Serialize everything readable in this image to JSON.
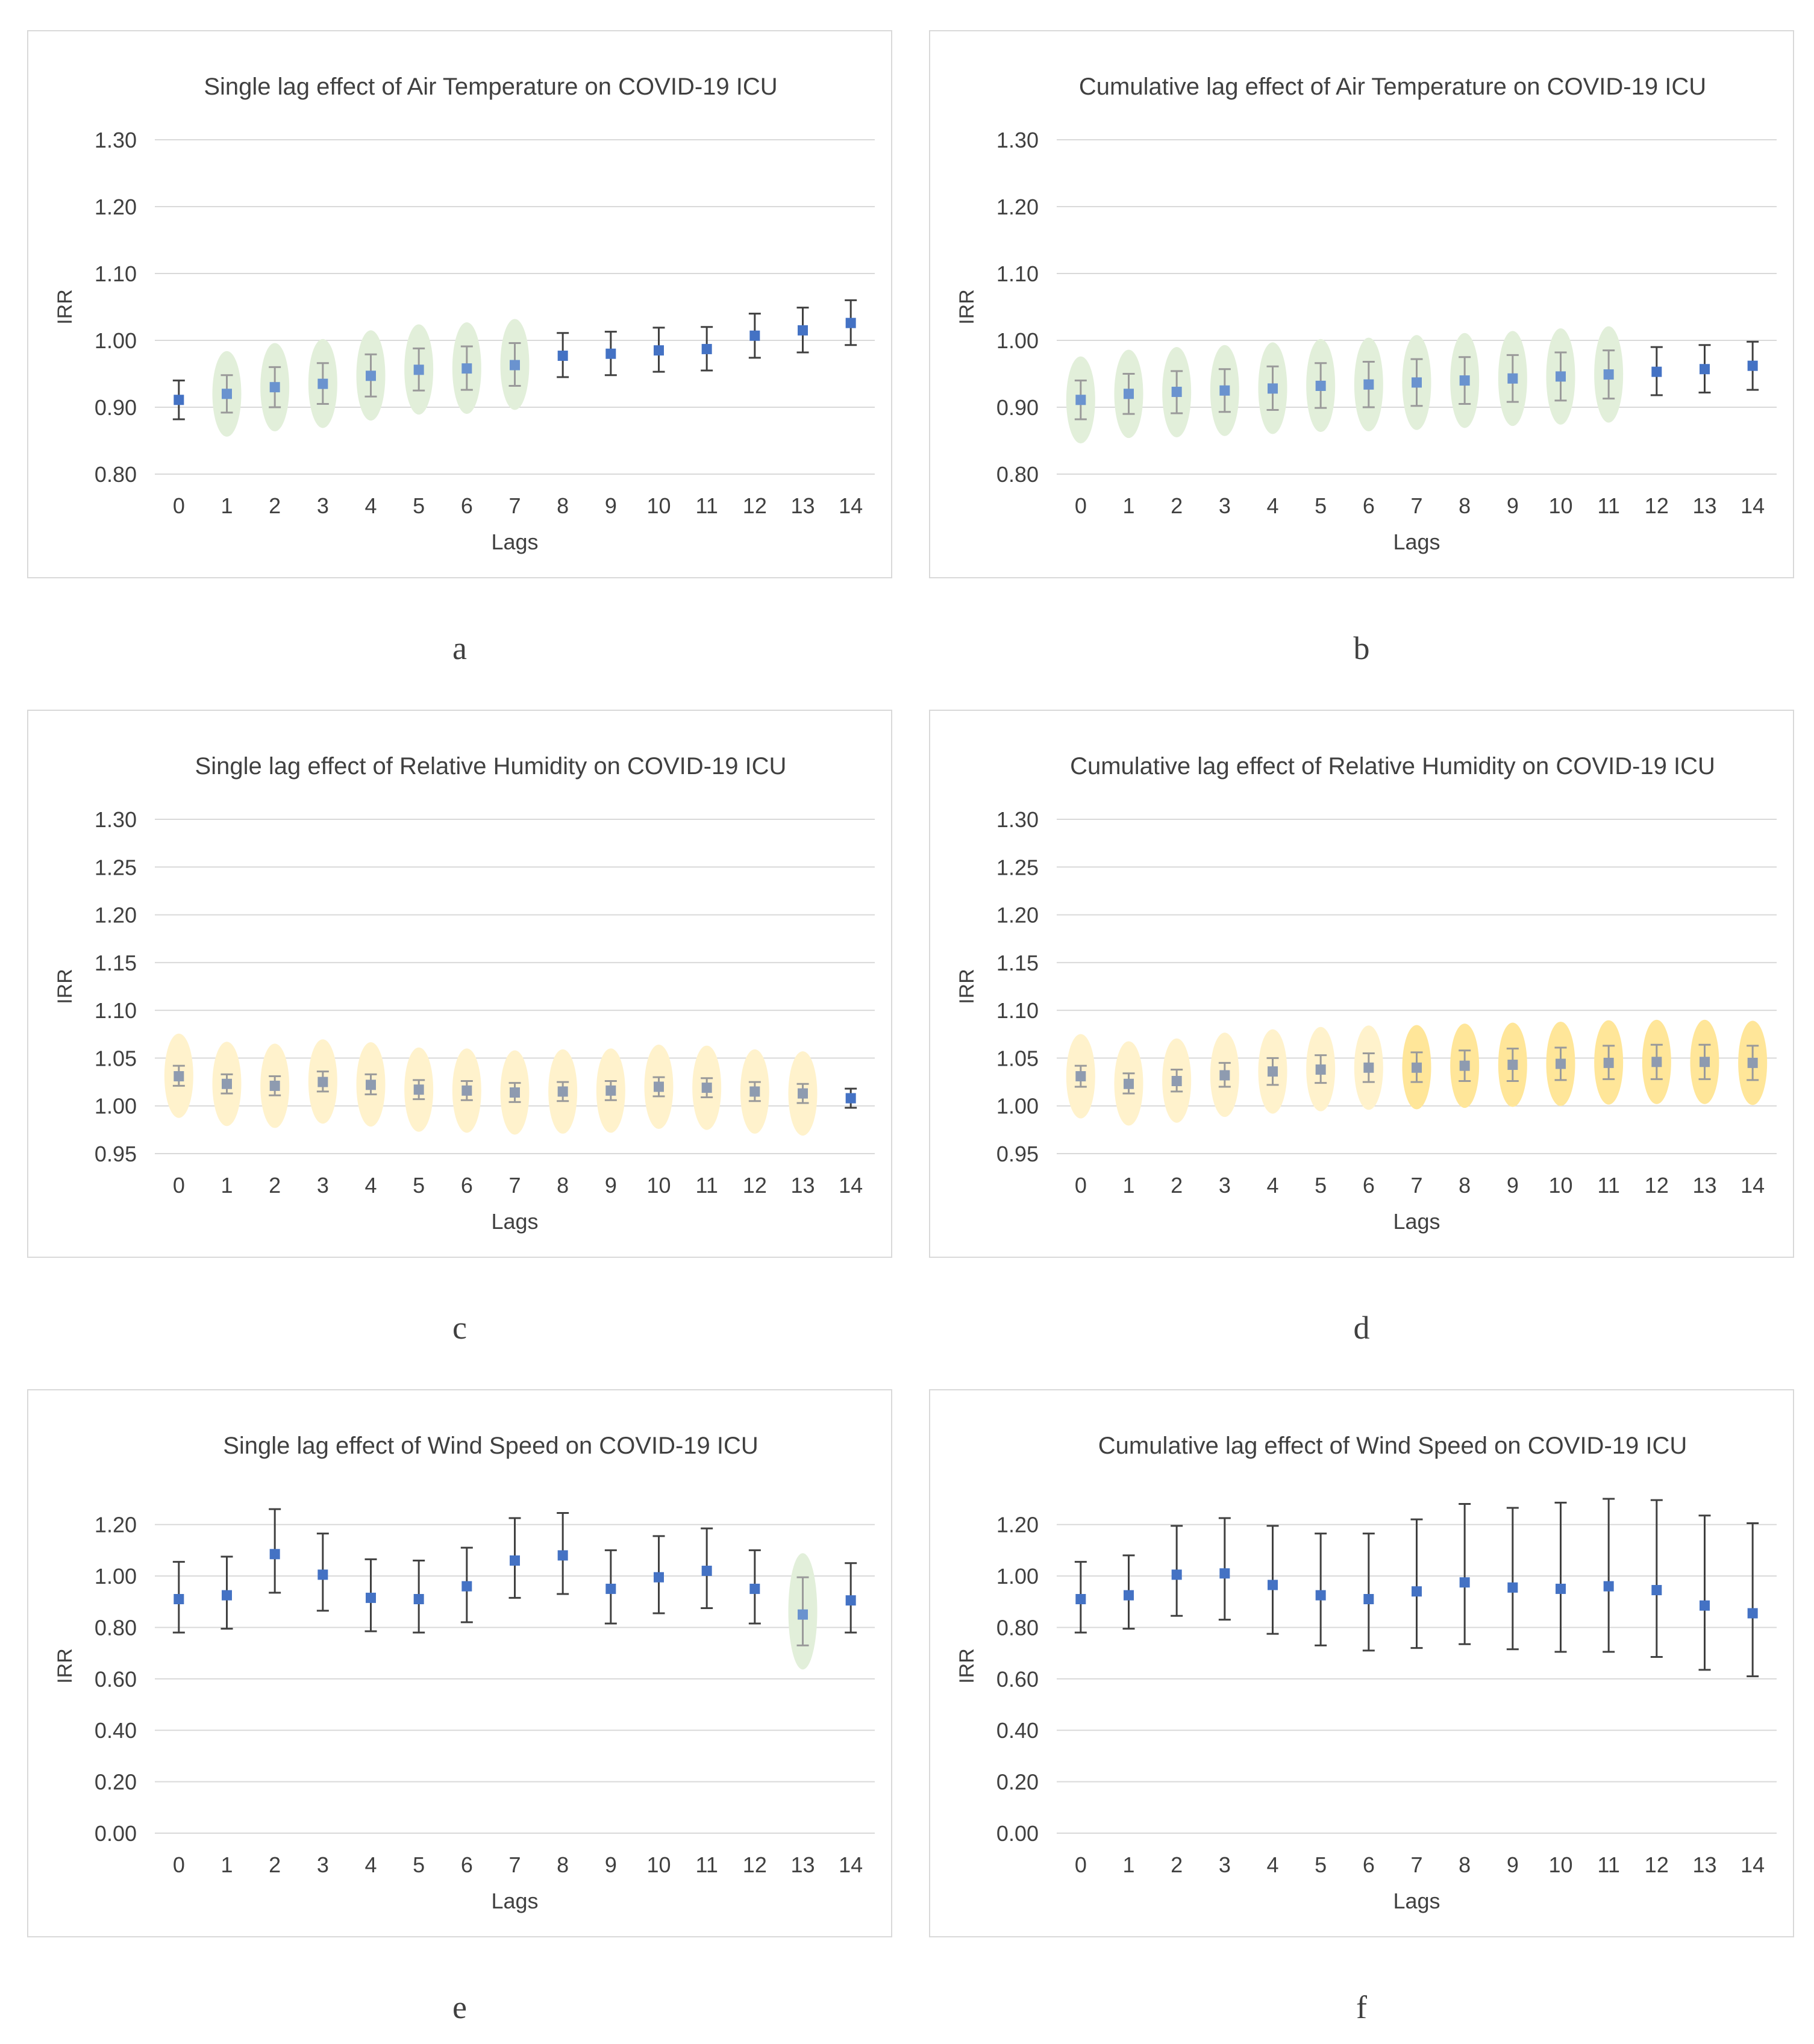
{
  "chart_data": [
    {
      "id": "a",
      "type": "scatter",
      "panel_label": "a",
      "title": "Single lag effect of Air Temperature on COVID-19 ICU",
      "xlabel": "Lags",
      "ylabel": "IRR",
      "ylim": [
        0.8,
        1.3
      ],
      "yticks": [
        "0.80",
        "0.90",
        "1.00",
        "1.10",
        "1.20",
        "1.30"
      ],
      "tick_values": [
        0.8,
        0.9,
        1.0,
        1.1,
        1.2,
        1.3
      ],
      "categories": [
        "0",
        "1",
        "2",
        "3",
        "4",
        "5",
        "6",
        "7",
        "8",
        "9",
        "10",
        "11",
        "12",
        "13",
        "14"
      ],
      "values": [
        0.911,
        0.92,
        0.93,
        0.935,
        0.947,
        0.956,
        0.958,
        0.963,
        0.977,
        0.98,
        0.985,
        0.987,
        1.007,
        1.015,
        1.026
      ],
      "lower": [
        0.882,
        0.892,
        0.9,
        0.905,
        0.916,
        0.925,
        0.926,
        0.932,
        0.945,
        0.948,
        0.953,
        0.955,
        0.974,
        0.982,
        0.993
      ],
      "upper": [
        0.94,
        0.948,
        0.96,
        0.966,
        0.979,
        0.988,
        0.991,
        0.996,
        1.011,
        1.013,
        1.019,
        1.02,
        1.04,
        1.049,
        1.06
      ],
      "highlight": [
        false,
        true,
        true,
        true,
        true,
        true,
        true,
        true,
        false,
        false,
        false,
        false,
        false,
        false,
        false
      ],
      "highlight_color": "#e2efda"
    },
    {
      "id": "b",
      "type": "scatter",
      "panel_label": "b",
      "title": "Cumulative lag effect of Air Temperature on COVID-19 ICU",
      "xlabel": "Lags",
      "ylabel": "IRR",
      "ylim": [
        0.8,
        1.3
      ],
      "yticks": [
        "0.80",
        "0.90",
        "1.00",
        "1.10",
        "1.20",
        "1.30"
      ],
      "tick_values": [
        0.8,
        0.9,
        1.0,
        1.1,
        1.2,
        1.3
      ],
      "categories": [
        "0",
        "1",
        "2",
        "3",
        "4",
        "5",
        "6",
        "7",
        "8",
        "9",
        "10",
        "11",
        "12",
        "13",
        "14"
      ],
      "values": [
        0.911,
        0.92,
        0.923,
        0.925,
        0.928,
        0.932,
        0.934,
        0.937,
        0.94,
        0.943,
        0.946,
        0.949,
        0.953,
        0.957,
        0.962
      ],
      "lower": [
        0.882,
        0.89,
        0.891,
        0.893,
        0.896,
        0.899,
        0.9,
        0.902,
        0.905,
        0.908,
        0.91,
        0.913,
        0.918,
        0.922,
        0.926
      ],
      "upper": [
        0.94,
        0.95,
        0.954,
        0.957,
        0.961,
        0.966,
        0.968,
        0.972,
        0.975,
        0.978,
        0.982,
        0.985,
        0.99,
        0.993,
        0.998
      ],
      "highlight": [
        true,
        true,
        true,
        true,
        true,
        true,
        true,
        true,
        true,
        true,
        true,
        true,
        false,
        false,
        false
      ],
      "highlight_color": "#e2efda"
    },
    {
      "id": "c",
      "type": "scatter",
      "panel_label": "c",
      "title": "Single lag effect of Relative Humidity on COVID-19 ICU",
      "xlabel": "Lags",
      "ylabel": "IRR",
      "ylim": [
        0.95,
        1.3
      ],
      "yticks": [
        "0.95",
        "1.00",
        "1.05",
        "1.10",
        "1.15",
        "1.20",
        "1.25",
        "1.30"
      ],
      "tick_values": [
        0.95,
        1.0,
        1.05,
        1.1,
        1.15,
        1.2,
        1.25,
        1.3
      ],
      "categories": [
        "0",
        "1",
        "2",
        "3",
        "4",
        "5",
        "6",
        "7",
        "8",
        "9",
        "10",
        "11",
        "12",
        "13",
        "14"
      ],
      "values": [
        1.031,
        1.023,
        1.021,
        1.025,
        1.022,
        1.017,
        1.016,
        1.014,
        1.015,
        1.016,
        1.02,
        1.019,
        1.015,
        1.013,
        1.008
      ],
      "lower": [
        1.021,
        1.013,
        1.011,
        1.015,
        1.012,
        1.007,
        1.006,
        1.004,
        1.005,
        1.006,
        1.01,
        1.009,
        1.005,
        1.003,
        0.998
      ],
      "upper": [
        1.042,
        1.033,
        1.031,
        1.036,
        1.033,
        1.027,
        1.026,
        1.024,
        1.025,
        1.026,
        1.03,
        1.029,
        1.025,
        1.023,
        1.018
      ],
      "highlight": [
        true,
        true,
        true,
        true,
        true,
        true,
        true,
        true,
        true,
        true,
        true,
        true,
        true,
        true,
        false
      ],
      "highlight_color": "#fff2cc"
    },
    {
      "id": "d",
      "type": "scatter",
      "panel_label": "d",
      "title": "Cumulative lag effect of Relative Humidity on COVID-19 ICU",
      "xlabel": "Lags",
      "ylabel": "IRR",
      "ylim": [
        0.95,
        1.3
      ],
      "yticks": [
        "0.95",
        "1.00",
        "1.05",
        "1.10",
        "1.15",
        "1.20",
        "1.25",
        "1.30"
      ],
      "tick_values": [
        0.95,
        1.0,
        1.05,
        1.1,
        1.15,
        1.2,
        1.25,
        1.3
      ],
      "categories": [
        "0",
        "1",
        "2",
        "3",
        "4",
        "5",
        "6",
        "7",
        "8",
        "9",
        "10",
        "11",
        "12",
        "13",
        "14"
      ],
      "values": [
        1.031,
        1.023,
        1.026,
        1.032,
        1.036,
        1.038,
        1.04,
        1.04,
        1.042,
        1.043,
        1.044,
        1.045,
        1.046,
        1.046,
        1.045
      ],
      "lower": [
        1.02,
        1.013,
        1.015,
        1.02,
        1.022,
        1.024,
        1.025,
        1.025,
        1.026,
        1.026,
        1.027,
        1.028,
        1.028,
        1.028,
        1.027
      ],
      "upper": [
        1.042,
        1.034,
        1.038,
        1.045,
        1.05,
        1.053,
        1.055,
        1.056,
        1.058,
        1.06,
        1.061,
        1.063,
        1.064,
        1.064,
        1.063
      ],
      "highlight": [
        true,
        true,
        true,
        true,
        true,
        true,
        true,
        true,
        true,
        true,
        true,
        true,
        true,
        true,
        true
      ],
      "highlight_color": "#fff2cc",
      "highlight_strong": [
        false,
        false,
        false,
        false,
        false,
        false,
        false,
        true,
        true,
        true,
        true,
        true,
        true,
        true,
        true
      ],
      "highlight_strong_color": "#ffe699"
    },
    {
      "id": "e",
      "type": "scatter",
      "panel_label": "e",
      "title": "Single lag effect of Wind Speed on COVID-19 ICU",
      "xlabel": "Lags",
      "ylabel": "IRR",
      "ylim": [
        0.0,
        1.3
      ],
      "yticks": [
        "0.00",
        "0.20",
        "0.40",
        "0.60",
        "0.80",
        "1.00",
        "1.20"
      ],
      "tick_values": [
        0.0,
        0.2,
        0.4,
        0.6,
        0.8,
        1.0,
        1.2
      ],
      "categories": [
        "0",
        "1",
        "2",
        "3",
        "4",
        "5",
        "6",
        "7",
        "8",
        "9",
        "10",
        "11",
        "12",
        "13",
        "14"
      ],
      "values": [
        0.91,
        0.925,
        1.085,
        1.005,
        0.915,
        0.91,
        0.96,
        1.06,
        1.08,
        0.95,
        0.995,
        1.02,
        0.95,
        0.85,
        0.905
      ],
      "lower": [
        0.78,
        0.795,
        0.935,
        0.865,
        0.785,
        0.78,
        0.82,
        0.915,
        0.93,
        0.815,
        0.855,
        0.875,
        0.815,
        0.73,
        0.78
      ],
      "upper": [
        1.055,
        1.075,
        1.26,
        1.165,
        1.065,
        1.06,
        1.11,
        1.225,
        1.245,
        1.1,
        1.155,
        1.185,
        1.1,
        0.995,
        1.05
      ],
      "highlight": [
        false,
        false,
        false,
        false,
        false,
        false,
        false,
        false,
        false,
        false,
        false,
        false,
        false,
        true,
        false
      ],
      "highlight_color": "#e2efda"
    },
    {
      "id": "f",
      "type": "scatter",
      "panel_label": "f",
      "title": "Cumulative lag effect of Wind Speed on COVID-19 ICU",
      "xlabel": "Lags",
      "ylabel": "IRR",
      "ylim": [
        0.0,
        1.3
      ],
      "yticks": [
        "0.00",
        "0.20",
        "0.40",
        "0.60",
        "0.80",
        "1.00",
        "1.20"
      ],
      "tick_values": [
        0.0,
        0.2,
        0.4,
        0.6,
        0.8,
        1.0,
        1.2
      ],
      "categories": [
        "0",
        "1",
        "2",
        "3",
        "4",
        "5",
        "6",
        "7",
        "8",
        "9",
        "10",
        "11",
        "12",
        "13",
        "14"
      ],
      "values": [
        0.91,
        0.925,
        1.005,
        1.01,
        0.965,
        0.925,
        0.91,
        0.94,
        0.975,
        0.955,
        0.95,
        0.96,
        0.945,
        0.885,
        0.855
      ],
      "lower": [
        0.78,
        0.795,
        0.845,
        0.83,
        0.775,
        0.73,
        0.71,
        0.72,
        0.735,
        0.715,
        0.705,
        0.705,
        0.685,
        0.635,
        0.61
      ],
      "upper": [
        1.055,
        1.08,
        1.195,
        1.225,
        1.195,
        1.165,
        1.165,
        1.22,
        1.28,
        1.265,
        1.285,
        1.3,
        1.295,
        1.235,
        1.205
      ],
      "highlight": [
        false,
        false,
        false,
        false,
        false,
        false,
        false,
        false,
        false,
        false,
        false,
        false,
        false,
        false,
        false
      ],
      "highlight_color": "#e2efda"
    }
  ],
  "colors": {
    "marker": "#4472c4",
    "marker_highlighted": "#6a93cf",
    "marker_highlighted_yellow": "#8e9bb0",
    "error_bar": "#404040",
    "error_bar_highlighted": "#9a9a9a",
    "gridline": "#d9d9d9",
    "text": "#404040"
  }
}
